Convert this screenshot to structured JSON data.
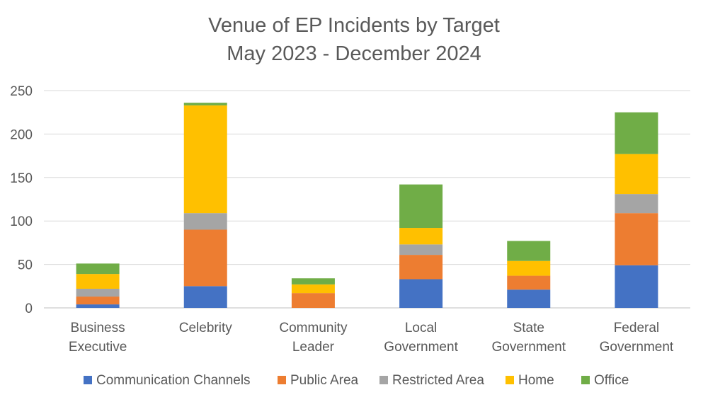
{
  "chart_data": {
    "type": "bar",
    "stacked": true,
    "title": "Venue of EP Incidents by Target",
    "subtitle": "May 2023 - December 2024",
    "categories": [
      [
        "Business",
        "Executive"
      ],
      [
        "Celebrity"
      ],
      [
        "Community",
        "Leader"
      ],
      [
        "Local",
        "Government"
      ],
      [
        "State",
        "Government"
      ],
      [
        "Federal",
        "Government"
      ]
    ],
    "series": [
      {
        "name": "Communication Channels",
        "color": "#4472C4",
        "values": [
          4,
          25,
          0,
          33,
          21,
          49
        ]
      },
      {
        "name": "Public Area",
        "color": "#ED7D31",
        "values": [
          9,
          65,
          17,
          28,
          16,
          60
        ]
      },
      {
        "name": "Restricted Area",
        "color": "#A5A5A5",
        "values": [
          9,
          19,
          0,
          12,
          0,
          22
        ]
      },
      {
        "name": "Home",
        "color": "#FFC000",
        "values": [
          17,
          124,
          10,
          19,
          17,
          46
        ]
      },
      {
        "name": "Office",
        "color": "#70AD47",
        "values": [
          12,
          3,
          7,
          50,
          23,
          48
        ]
      }
    ],
    "ylim": [
      0,
      250
    ],
    "yticks": [
      0,
      50,
      100,
      150,
      200,
      250
    ],
    "grid": true,
    "legend": "bottom"
  }
}
